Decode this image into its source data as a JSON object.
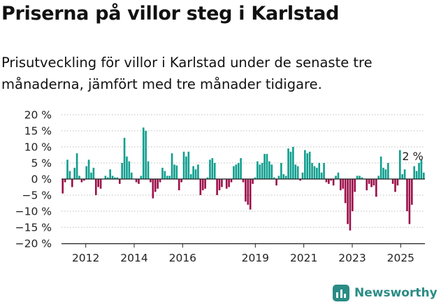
{
  "title": "Priserna på villor steg i Karlstad",
  "subtitle": "Prisutveckling för villor i Karlstad under de senaste tre månaderna, jämfört med tre månader tidigare.",
  "brand": {
    "name": "Newsworthy",
    "logo_icon": "newsworthy-bars-icon"
  },
  "colors": {
    "positive": "#0f9e8e",
    "negative": "#9b0f4a",
    "brand": "#2a8c85"
  },
  "chart_data": {
    "type": "bar",
    "ylim": [
      -20,
      20
    ],
    "y_ticks": [
      20,
      15,
      10,
      5,
      0,
      -5,
      -10,
      -15,
      -20
    ],
    "y_tick_labels": [
      "20 %",
      "15 %",
      "10 %",
      "5 %",
      "0 %",
      "−5 %",
      "−10 %",
      "−15 %",
      "−20 %"
    ],
    "x_ticks": [
      {
        "year": 2012,
        "label": "2012"
      },
      {
        "year": 2014,
        "label": "2014"
      },
      {
        "year": 2016,
        "label": "2016"
      },
      {
        "year": 2019,
        "label": "2019"
      },
      {
        "year": 2021,
        "label": "2021"
      },
      {
        "year": 2023,
        "label": "2023"
      },
      {
        "year": 2025,
        "label": "2025"
      }
    ],
    "x_start": "2011-01",
    "x_end": "2026-01",
    "last_value_label": "2 %",
    "series": [
      {
        "values": [
          -4.5,
          -1,
          6,
          2.5,
          -2.5,
          3.5,
          8,
          1,
          -1,
          -0.5,
          4,
          6,
          2,
          3.5,
          -5,
          -2.5,
          -3,
          0,
          1,
          0.5,
          3,
          1,
          0.5,
          0.5,
          -1.5,
          5,
          12.8,
          7,
          5.5,
          2,
          0,
          -1,
          -1.5,
          1,
          16,
          15,
          5.5,
          -1,
          -6,
          -4,
          -3,
          -1,
          3.5,
          2.5,
          1,
          1,
          8,
          4.5,
          4.2,
          -3.5,
          -1,
          8.5,
          7,
          8.5,
          1.5,
          4,
          3,
          4.5,
          -5,
          -3.5,
          -3,
          0.5,
          6,
          6.5,
          5,
          -5,
          -3.5,
          -2.5,
          0,
          -3,
          -2.5,
          -1,
          4,
          4.5,
          5,
          6.5,
          -1,
          -7,
          -8,
          -9.5,
          -1.5,
          0.5,
          5.5,
          4.5,
          5,
          7.8,
          7.8,
          5.5,
          4.5,
          0.5,
          -2,
          1,
          5,
          1.5,
          1,
          9.5,
          8.5,
          10,
          4.5,
          4,
          -0.5,
          2,
          9,
          8,
          8.5,
          5,
          4,
          3.5,
          5,
          2,
          5,
          -1,
          -1.5,
          -0.5,
          -2,
          1,
          2,
          -3.5,
          -3,
          -7.5,
          -14,
          -16,
          -10,
          -4,
          1,
          1,
          0.5,
          0,
          -3.5,
          -1.5,
          -2.5,
          -2,
          -5.5,
          1,
          7,
          3.5,
          3,
          5,
          0,
          -1.5,
          -4,
          -2,
          9,
          1.5,
          3,
          -10,
          -14,
          -8,
          4,
          2.5,
          5,
          6,
          2
        ]
      }
    ]
  }
}
